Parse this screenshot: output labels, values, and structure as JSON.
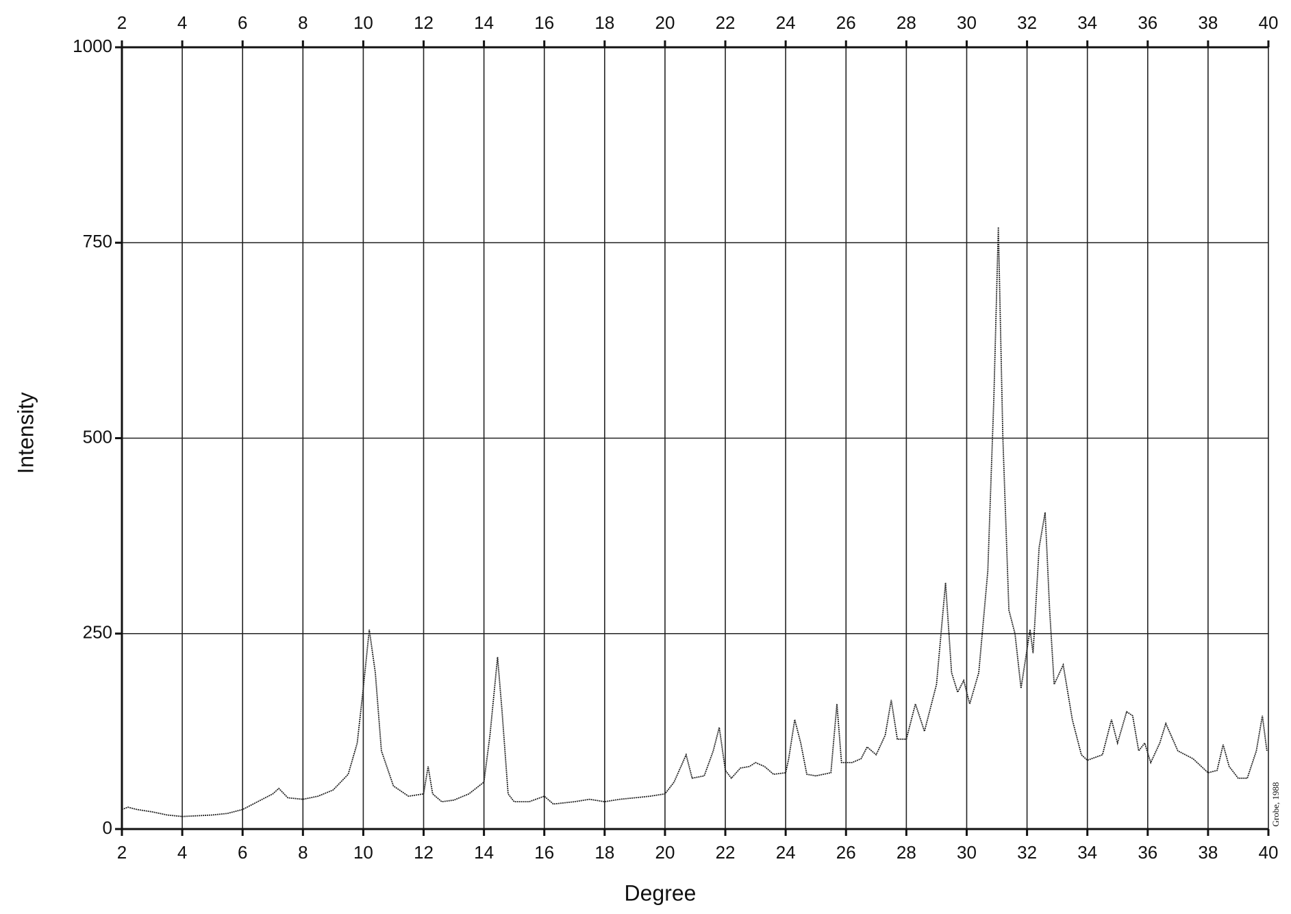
{
  "chart_data": {
    "type": "line",
    "xlabel": "Degree",
    "ylabel": "Intensity",
    "annotation": "Grobe, 1988",
    "color": "#222222",
    "xlim": [
      2,
      40
    ],
    "ylim": [
      0,
      1000
    ],
    "xticks": [
      2,
      4,
      6,
      8,
      10,
      12,
      14,
      16,
      18,
      20,
      22,
      24,
      26,
      28,
      30,
      32,
      34,
      36,
      38,
      40
    ],
    "yticks": [
      0,
      250,
      500,
      750,
      1000
    ],
    "grid": true,
    "x": [
      2.0,
      2.2,
      2.5,
      3,
      3.5,
      4,
      4.5,
      5,
      5.5,
      6,
      6.5,
      7,
      7.2,
      7.5,
      8,
      8.5,
      9,
      9.5,
      9.8,
      10,
      10.2,
      10.4,
      10.6,
      11,
      11.5,
      12,
      12.15,
      12.3,
      12.6,
      13,
      13.5,
      14,
      14.2,
      14.45,
      14.6,
      14.8,
      15,
      15.5,
      16,
      16.3,
      17,
      17.5,
      18,
      18.5,
      19,
      19.5,
      20,
      20.3,
      20.7,
      20.9,
      21.3,
      21.6,
      21.8,
      22,
      22.2,
      22.5,
      22.8,
      23,
      23.3,
      23.6,
      24,
      24.1,
      24.3,
      24.5,
      24.7,
      25,
      25.5,
      25.7,
      25.85,
      26.2,
      26.5,
      26.7,
      27,
      27.3,
      27.5,
      27.7,
      28,
      28.3,
      28.6,
      29,
      29.3,
      29.5,
      29.7,
      29.9,
      30,
      30.1,
      30.4,
      30.7,
      30.9,
      31.05,
      31.2,
      31.4,
      31.6,
      31.8,
      32.1,
      32.2,
      32.4,
      32.6,
      32.75,
      32.9,
      33.2,
      33.5,
      33.8,
      34,
      34.5,
      34.8,
      35,
      35.3,
      35.5,
      35.7,
      35.9,
      36.1,
      36.4,
      36.6,
      37,
      37.5,
      38,
      38.3,
      38.5,
      38.7,
      39,
      39.3,
      39.6,
      39.8,
      39.95
    ],
    "values": [
      25,
      28,
      25,
      22,
      18,
      16,
      17,
      18,
      20,
      25,
      35,
      45,
      52,
      40,
      38,
      42,
      50,
      70,
      110,
      180,
      255,
      200,
      100,
      55,
      42,
      45,
      80,
      45,
      35,
      37,
      45,
      60,
      120,
      220,
      150,
      45,
      35,
      35,
      42,
      32,
      35,
      38,
      35,
      38,
      40,
      42,
      45,
      60,
      95,
      65,
      68,
      100,
      130,
      75,
      65,
      78,
      80,
      85,
      80,
      70,
      72,
      90,
      140,
      110,
      70,
      68,
      72,
      160,
      85,
      85,
      90,
      105,
      95,
      120,
      165,
      115,
      115,
      160,
      125,
      185,
      315,
      200,
      175,
      190,
      175,
      160,
      200,
      330,
      550,
      770,
      500,
      280,
      250,
      180,
      255,
      225,
      360,
      405,
      280,
      185,
      210,
      140,
      95,
      88,
      95,
      140,
      110,
      150,
      145,
      100,
      110,
      85,
      110,
      135,
      100,
      90,
      72,
      75,
      108,
      80,
      65,
      65,
      100,
      145,
      100
    ]
  }
}
